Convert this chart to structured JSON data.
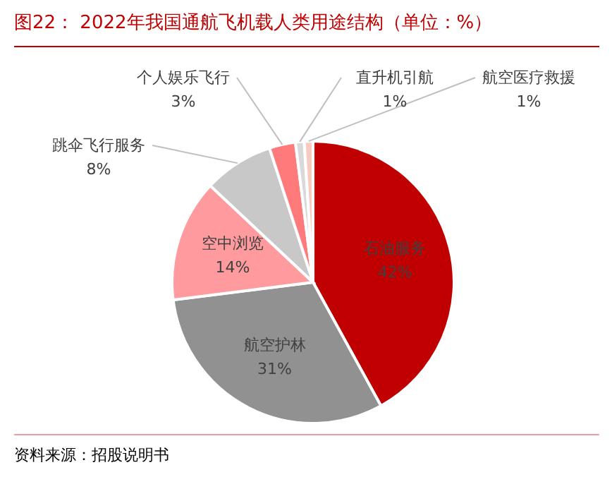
{
  "chart_data": {
    "type": "pie",
    "title": "图22： 2022年我国通航飞机载人类用途结构（单位：%）",
    "categories": [
      "石油服务",
      "航空护林",
      "空中浏览",
      "跳伞飞行服务",
      "个人娱乐飞行",
      "直升机引航",
      "航空医疗救援"
    ],
    "values": [
      42,
      31,
      14,
      8,
      3,
      1,
      1
    ],
    "colors": [
      "#c00000",
      "#919191",
      "#ff9b9e",
      "#c8c8c8",
      "#ff7a7a",
      "#d9d9d9",
      "#f8cbc0"
    ],
    "value_labels": [
      "42%",
      "31%",
      "14%",
      "8%",
      "3%",
      "1%",
      "1%"
    ],
    "annotations": [
      "资料来源：招股说明书"
    ],
    "legend": false
  }
}
